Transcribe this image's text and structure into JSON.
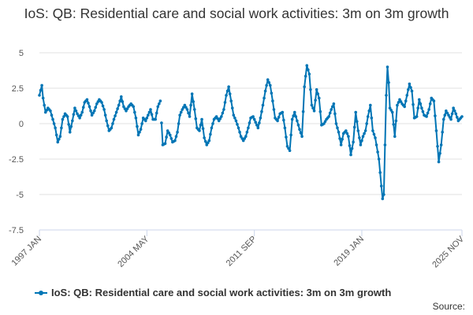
{
  "chart_data": {
    "type": "line",
    "title": "IoS: QB: Residential care and social work activities: 3m on 3m growth",
    "xlabel": "",
    "ylabel": "",
    "ylim": [
      -7.5,
      5
    ],
    "yticks": [
      -7.5,
      -5,
      -2.5,
      0,
      2.5,
      5
    ],
    "ytick_labels": [
      "-7.5",
      "-5",
      "-2.5",
      "0",
      "2.5",
      "5"
    ],
    "x_start": "1997 JAN",
    "x_end": "2025 NOV",
    "xtick_labels": [
      {
        "label": "1997 JAN",
        "index": 0
      },
      {
        "label": "2004 MAY",
        "index": 88
      },
      {
        "label": "2011 SEP",
        "index": 176
      },
      {
        "label": "2019 JAN",
        "index": 264
      },
      {
        "label": "2025 NOV",
        "index": 346
      }
    ],
    "grid": true,
    "legend_position": "bottom-left",
    "color": "#0075b5",
    "series": [
      {
        "name": "IoS: QB: Residential care and social work activities: 3m on 3m growth",
        "keyframes": [
          [
            0,
            2.0
          ],
          [
            2,
            2.7
          ],
          [
            3,
            1.8
          ],
          [
            5,
            0.8
          ],
          [
            7,
            1.1
          ],
          [
            9,
            0.9
          ],
          [
            11,
            0.3
          ],
          [
            13,
            -0.3
          ],
          [
            15,
            -1.3
          ],
          [
            17,
            -0.9
          ],
          [
            19,
            0.3
          ],
          [
            21,
            0.7
          ],
          [
            23,
            0.5
          ],
          [
            25,
            -0.6
          ],
          [
            27,
            0.2
          ],
          [
            29,
            1.1
          ],
          [
            31,
            0.7
          ],
          [
            33,
            0.4
          ],
          [
            35,
            0.8
          ],
          [
            37,
            1.5
          ],
          [
            39,
            1.7
          ],
          [
            41,
            1.2
          ],
          [
            43,
            0.6
          ],
          [
            45,
            0.9
          ],
          [
            47,
            1.4
          ],
          [
            49,
            1.7
          ],
          [
            51,
            1.5
          ],
          [
            53,
            1.0
          ],
          [
            55,
            0.2
          ],
          [
            57,
            -0.5
          ],
          [
            59,
            -0.3
          ],
          [
            61,
            0.3
          ],
          [
            63,
            0.8
          ],
          [
            65,
            1.3
          ],
          [
            67,
            1.9
          ],
          [
            69,
            1.2
          ],
          [
            71,
            0.9
          ],
          [
            73,
            1.2
          ],
          [
            75,
            1.4
          ],
          [
            77,
            1.2
          ],
          [
            79,
            0.4
          ],
          [
            81,
            -0.8
          ],
          [
            83,
            -0.4
          ],
          [
            85,
            0.4
          ],
          [
            87,
            0.2
          ],
          [
            89,
            0.6
          ],
          [
            91,
            1.0
          ],
          [
            93,
            0.3
          ],
          [
            95,
            0.3
          ],
          [
            97,
            1.2
          ],
          [
            99,
            1.6
          ],
          [
            101,
            -1.5
          ],
          [
            103,
            -1.4
          ],
          [
            105,
            -0.5
          ],
          [
            107,
            -0.8
          ],
          [
            109,
            -1.3
          ],
          [
            111,
            -1.2
          ],
          [
            113,
            -0.6
          ],
          [
            115,
            0.6
          ],
          [
            117,
            1.0
          ],
          [
            119,
            1.3
          ],
          [
            121,
            1.0
          ],
          [
            123,
            0.5
          ],
          [
            125,
            2.1
          ],
          [
            127,
            1.0
          ],
          [
            129,
            -0.3
          ],
          [
            131,
            -0.5
          ],
          [
            133,
            0.3
          ],
          [
            135,
            -1.0
          ],
          [
            137,
            -1.5
          ],
          [
            139,
            -1.2
          ],
          [
            141,
            -0.3
          ],
          [
            143,
            0.3
          ],
          [
            145,
            0.5
          ],
          [
            147,
            0.2
          ],
          [
            149,
            0.5
          ],
          [
            151,
            1.0
          ],
          [
            153,
            2.0
          ],
          [
            155,
            2.6
          ],
          [
            157,
            1.6
          ],
          [
            159,
            0.6
          ],
          [
            161,
            0.2
          ],
          [
            163,
            -0.3
          ],
          [
            165,
            -0.9
          ],
          [
            167,
            -1.2
          ],
          [
            169,
            -0.9
          ],
          [
            171,
            -0.3
          ],
          [
            173,
            0.4
          ],
          [
            175,
            0.5
          ],
          [
            177,
            0.1
          ],
          [
            179,
            -0.3
          ],
          [
            181,
            0.4
          ],
          [
            183,
            1.3
          ],
          [
            185,
            2.3
          ],
          [
            187,
            3.1
          ],
          [
            189,
            2.7
          ],
          [
            191,
            1.6
          ],
          [
            193,
            0.4
          ],
          [
            195,
            0.2
          ],
          [
            197,
            0.7
          ],
          [
            199,
            0.8
          ],
          [
            201,
            -0.3
          ],
          [
            203,
            -1.6
          ],
          [
            205,
            -1.9
          ],
          [
            207,
            0.3
          ],
          [
            209,
            0.8
          ],
          [
            211,
            0.2
          ],
          [
            213,
            -0.4
          ],
          [
            215,
            -0.9
          ],
          [
            217,
            2.6
          ],
          [
            219,
            4.1
          ],
          [
            221,
            3.5
          ],
          [
            223,
            1.3
          ],
          [
            225,
            0.9
          ],
          [
            227,
            2.4
          ],
          [
            229,
            1.8
          ],
          [
            231,
            -0.1
          ],
          [
            233,
            0.0
          ],
          [
            235,
            0.3
          ],
          [
            237,
            0.5
          ],
          [
            239,
            1.0
          ],
          [
            241,
            1.4
          ],
          [
            243,
            0.0
          ],
          [
            245,
            -0.6
          ],
          [
            247,
            -1.5
          ],
          [
            249,
            -0.7
          ],
          [
            251,
            -0.5
          ],
          [
            253,
            -0.9
          ],
          [
            255,
            -2.2
          ],
          [
            257,
            -1.3
          ],
          [
            259,
            0.8
          ],
          [
            261,
            -0.5
          ],
          [
            263,
            -1.5
          ],
          [
            265,
            -0.9
          ],
          [
            267,
            -0.5
          ],
          [
            269,
            0.5
          ],
          [
            271,
            1.3
          ],
          [
            273,
            -0.5
          ],
          [
            275,
            -1.0
          ],
          [
            276,
            -1.5
          ],
          [
            278,
            -2.5
          ],
          [
            280,
            -4.4
          ],
          [
            281,
            -5.3
          ],
          [
            282,
            -5.0
          ],
          [
            284,
            2.0
          ],
          [
            285,
            4.0
          ],
          [
            286,
            2.9
          ],
          [
            287,
            1.1
          ],
          [
            289,
            0.8
          ],
          [
            291,
            -0.9
          ],
          [
            293,
            1.3
          ],
          [
            295,
            1.7
          ],
          [
            297,
            1.4
          ],
          [
            299,
            1.2
          ],
          [
            301,
            2.0
          ],
          [
            303,
            2.8
          ],
          [
            305,
            2.3
          ],
          [
            307,
            0.4
          ],
          [
            309,
            0.5
          ],
          [
            311,
            1.7
          ],
          [
            313,
            1.1
          ],
          [
            315,
            0.6
          ],
          [
            317,
            0.5
          ],
          [
            319,
            1.0
          ],
          [
            321,
            1.8
          ],
          [
            323,
            1.6
          ],
          [
            325,
            -0.5
          ],
          [
            327,
            -2.7
          ],
          [
            329,
            -1.5
          ],
          [
            331,
            0.3
          ],
          [
            333,
            0.9
          ],
          [
            335,
            0.6
          ],
          [
            337,
            0.3
          ],
          [
            339,
            1.1
          ],
          [
            341,
            0.7
          ],
          [
            343,
            0.2
          ],
          [
            345,
            0.4
          ],
          [
            346,
            0.5
          ]
        ],
        "gaps_after_index": [
          99
        ]
      }
    ],
    "source_label": "Source:"
  },
  "legend": {
    "label": "IoS: QB: Residential care and social work activities: 3m on 3m growth"
  },
  "footer": {
    "source": "Source:"
  }
}
